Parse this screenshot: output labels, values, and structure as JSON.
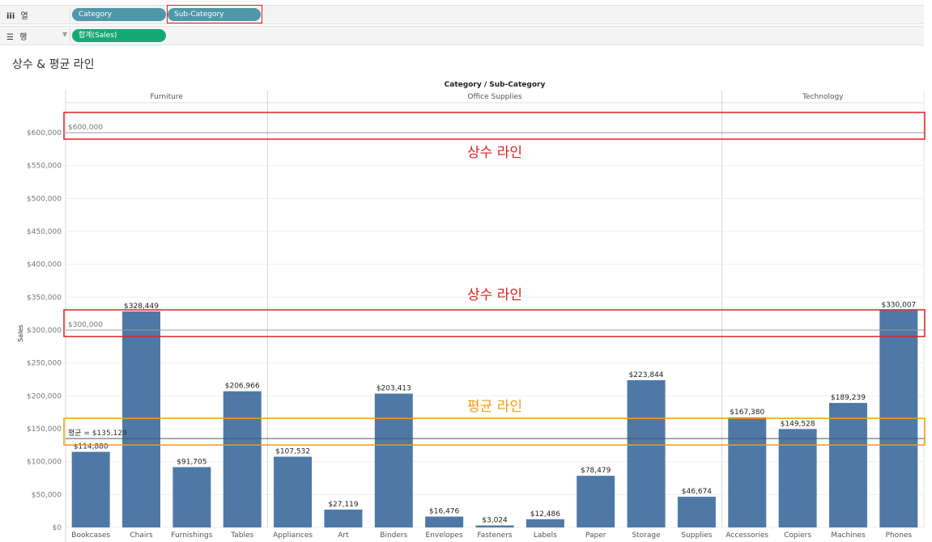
{
  "shelves": {
    "columns": {
      "icon": "iii",
      "label": "열",
      "pills": [
        "Category",
        "Sub-Category"
      ]
    },
    "rows": {
      "icon": "☰",
      "label": "행",
      "pills": [
        "합계(Sales)"
      ]
    }
  },
  "sheet": {
    "title": "상수 & 평균 라인"
  },
  "colors": {
    "bar": "#4e79a7",
    "annotation_red": "#e02020",
    "annotation_orange": "#f39c12",
    "dimension_pill": "#4f97ab",
    "measure_pill": "#17a974"
  },
  "chart_data": {
    "type": "bar",
    "title": "Category / Sub-Category",
    "ylabel": "Sales",
    "ylim": [
      0,
      650000
    ],
    "yticks": [
      0,
      50000,
      100000,
      150000,
      200000,
      250000,
      300000,
      350000,
      400000,
      450000,
      500000,
      550000,
      600000
    ],
    "ytick_labels": [
      "$0",
      "$50,000",
      "$100,000",
      "$150,000",
      "$200,000",
      "$250,000",
      "$300,000",
      "$350,000",
      "$400,000",
      "$450,000",
      "$500,000",
      "$550,000",
      "$600,000"
    ],
    "groups": [
      {
        "name": "Furniture",
        "categories": [
          "Bookcases",
          "Chairs",
          "Furnishings",
          "Tables"
        ],
        "values": [
          114880,
          328449,
          91705,
          206966
        ],
        "labels": [
          "$114,880",
          "$328,449",
          "$91,705",
          "$206,966"
        ]
      },
      {
        "name": "Office Supplies",
        "categories": [
          "Appliances",
          "Art",
          "Binders",
          "Envelopes",
          "Fasteners",
          "Labels",
          "Paper",
          "Storage",
          "Supplies"
        ],
        "values": [
          107532,
          27119,
          203413,
          16476,
          3024,
          12486,
          78479,
          223844,
          46674
        ],
        "labels": [
          "$107,532",
          "$27,119",
          "$203,413",
          "$16,476",
          "$3,024",
          "$12,486",
          "$78,479",
          "$223,844",
          "$46,674"
        ]
      },
      {
        "name": "Technology",
        "categories": [
          "Accessories",
          "Copiers",
          "Machines",
          "Phones"
        ],
        "values": [
          167380,
          149528,
          189239,
          330007
        ],
        "labels": [
          "$167,380",
          "$149,528",
          "$189,239",
          "$330,007"
        ]
      }
    ],
    "reference_lines": [
      {
        "value": 600000,
        "label": "$600,000",
        "annotation": "상수 라인",
        "color": "red"
      },
      {
        "value": 300000,
        "label": "$300,000",
        "annotation": "상수 라인",
        "color": "red"
      },
      {
        "value": 135129,
        "label": "평균 = $135,129",
        "annotation": "평균 라인",
        "color": "orange"
      }
    ],
    "grid": true,
    "legend": "none"
  }
}
